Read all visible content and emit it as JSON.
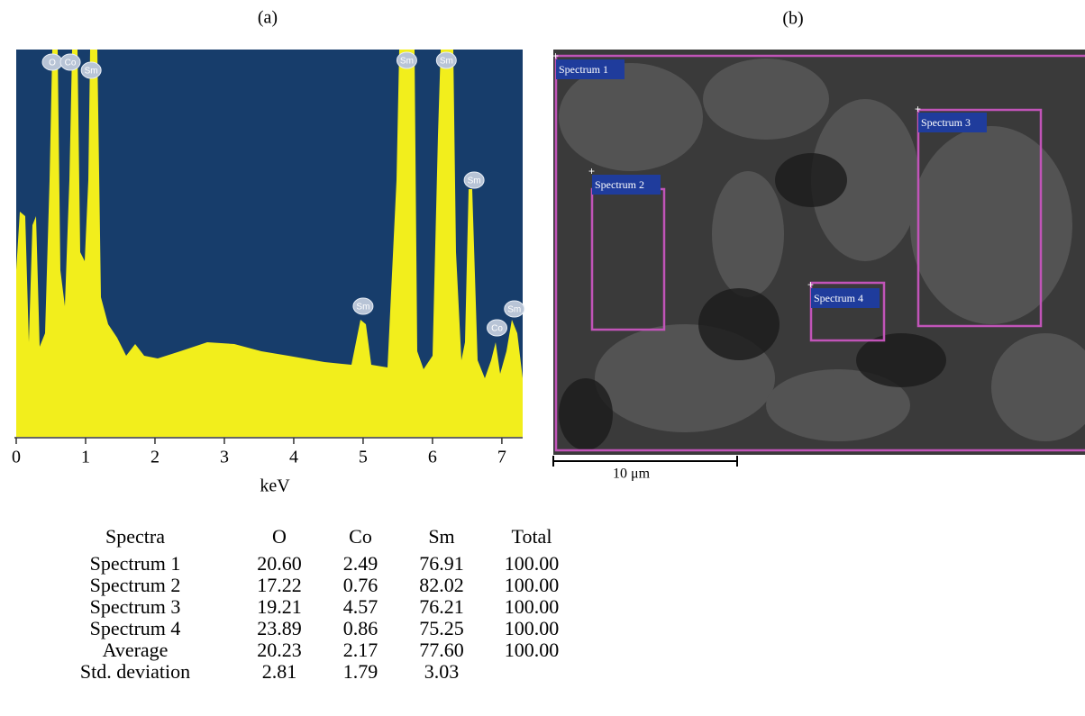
{
  "panel_a": {
    "label": "(a)",
    "x_axis_label": "keV",
    "xlim": [
      0,
      7.3
    ],
    "xticks": [
      0,
      1,
      2,
      3,
      4,
      5,
      6,
      7
    ],
    "peaks": [
      {
        "label": "O",
        "x": 0.52
      },
      {
        "label": "Co",
        "x": 0.78
      },
      {
        "label": "Sm",
        "x": 1.08
      },
      {
        "label": "Sm",
        "x": 5.63
      },
      {
        "label": "Sm",
        "x": 6.2
      },
      {
        "label": "Sm",
        "x": 6.6
      },
      {
        "label": "Sm",
        "x": 5.0
      },
      {
        "label": "Co",
        "x": 6.93
      },
      {
        "label": "Sm",
        "x": 7.18
      }
    ]
  },
  "panel_b": {
    "label": "(b)",
    "regions": [
      {
        "label": "Spectrum 1"
      },
      {
        "label": "Spectrum 2"
      },
      {
        "label": "Spectrum 3"
      },
      {
        "label": "Spectrum 4"
      }
    ],
    "scale_bar": "10 μm"
  },
  "table": {
    "header": [
      "Spectra",
      "O",
      "Co",
      "Sm",
      "Total"
    ],
    "rows": [
      [
        "Spectrum 1",
        "20.60",
        "2.49",
        "76.91",
        "100.00"
      ],
      [
        "Spectrum 2",
        "17.22",
        "0.76",
        "82.02",
        "100.00"
      ],
      [
        "Spectrum 3",
        "19.21",
        "4.57",
        "76.21",
        "100.00"
      ],
      [
        "Spectrum 4",
        "23.89",
        "0.86",
        "75.25",
        "100.00"
      ],
      [
        "Average",
        "20.23",
        "2.17",
        "77.60",
        "100.00"
      ],
      [
        "Std. deviation",
        "2.81",
        "1.79",
        "3.03"
      ]
    ]
  }
}
